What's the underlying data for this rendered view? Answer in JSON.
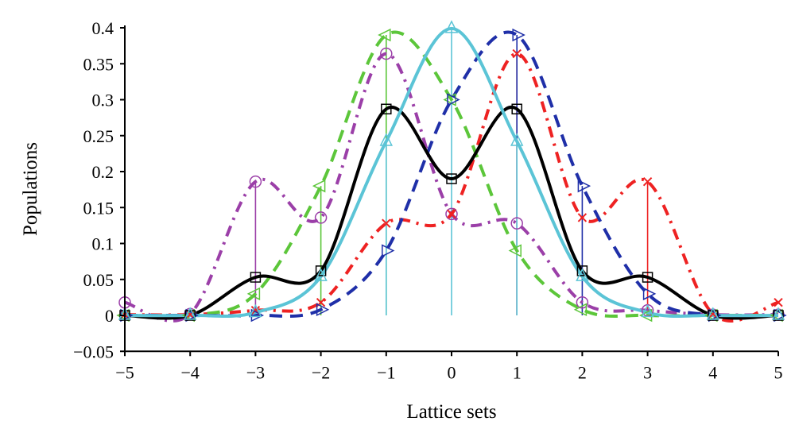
{
  "chart_data": {
    "type": "line",
    "title": "",
    "xlabel": "Lattice sets",
    "ylabel": "Populations",
    "xlim": [
      -5,
      5
    ],
    "ylim": [
      -0.05,
      0.4
    ],
    "xticks": [
      "−5",
      "−4",
      "−3",
      "−2",
      "−1",
      "0",
      "1",
      "2",
      "3",
      "4",
      "5"
    ],
    "xtick_values": [
      -5,
      -4,
      -3,
      -2,
      -1,
      0,
      1,
      2,
      3,
      4,
      5
    ],
    "yticks": [
      "−0.05",
      "0",
      "0.05",
      "0.1",
      "0.15",
      "0.2",
      "0.25",
      "0.3",
      "0.35",
      "0.4"
    ],
    "ytick_values": [
      -0.05,
      0,
      0.05,
      0.1,
      0.15,
      0.2,
      0.25,
      0.3,
      0.35,
      0.4
    ],
    "grid": false,
    "legend": "none",
    "x": [
      -5,
      -4,
      -3,
      -2,
      -1,
      0,
      1,
      2,
      3,
      4,
      5
    ],
    "series": [
      {
        "name": "purple",
        "color": "#9b3fa8",
        "dash": "14 8 3 8",
        "marker": "circle",
        "width": 4,
        "values": [
          0.018,
          0.002,
          0.186,
          0.136,
          0.364,
          0.141,
          0.128,
          0.018,
          0.007,
          0.001,
          0.001
        ],
        "stems": [
          -3
        ]
      },
      {
        "name": "red",
        "color": "#ee2222",
        "dash": "14 8 3 8",
        "marker": "x",
        "width": 4,
        "values": [
          0.001,
          0.001,
          0.007,
          0.018,
          0.128,
          0.141,
          0.364,
          0.136,
          0.186,
          0.002,
          0.018
        ],
        "stems": [
          1,
          3
        ]
      },
      {
        "name": "green",
        "color": "#5cc63a",
        "dash": "16 10",
        "marker": "triangle-left",
        "width": 4,
        "values": [
          0,
          0,
          0.03,
          0.18,
          0.39,
          0.3,
          0.09,
          0.008,
          0,
          0,
          0
        ],
        "stems": [
          -2,
          -1
        ]
      },
      {
        "name": "blue",
        "color": "#1f2fa8",
        "dash": "16 10",
        "marker": "triangle-right",
        "width": 4,
        "values": [
          0,
          0,
          0,
          0.008,
          0.09,
          0.3,
          0.39,
          0.18,
          0.03,
          0,
          0
        ],
        "stems": [
          1,
          2
        ]
      },
      {
        "name": "black",
        "color": "#000000",
        "dash": "",
        "marker": "square",
        "width": 4,
        "values": [
          0,
          0,
          0.053,
          0.062,
          0.287,
          0.19,
          0.287,
          0.062,
          0.053,
          0,
          0
        ],
        "stems": []
      },
      {
        "name": "cyan",
        "color": "#5bc4d6",
        "dash": "",
        "marker": "triangle-up",
        "width": 4,
        "values": [
          0,
          0,
          0.004,
          0.054,
          0.242,
          0.399,
          0.242,
          0.054,
          0.004,
          0,
          0
        ],
        "stems": [
          -1,
          0,
          1
        ]
      }
    ]
  }
}
